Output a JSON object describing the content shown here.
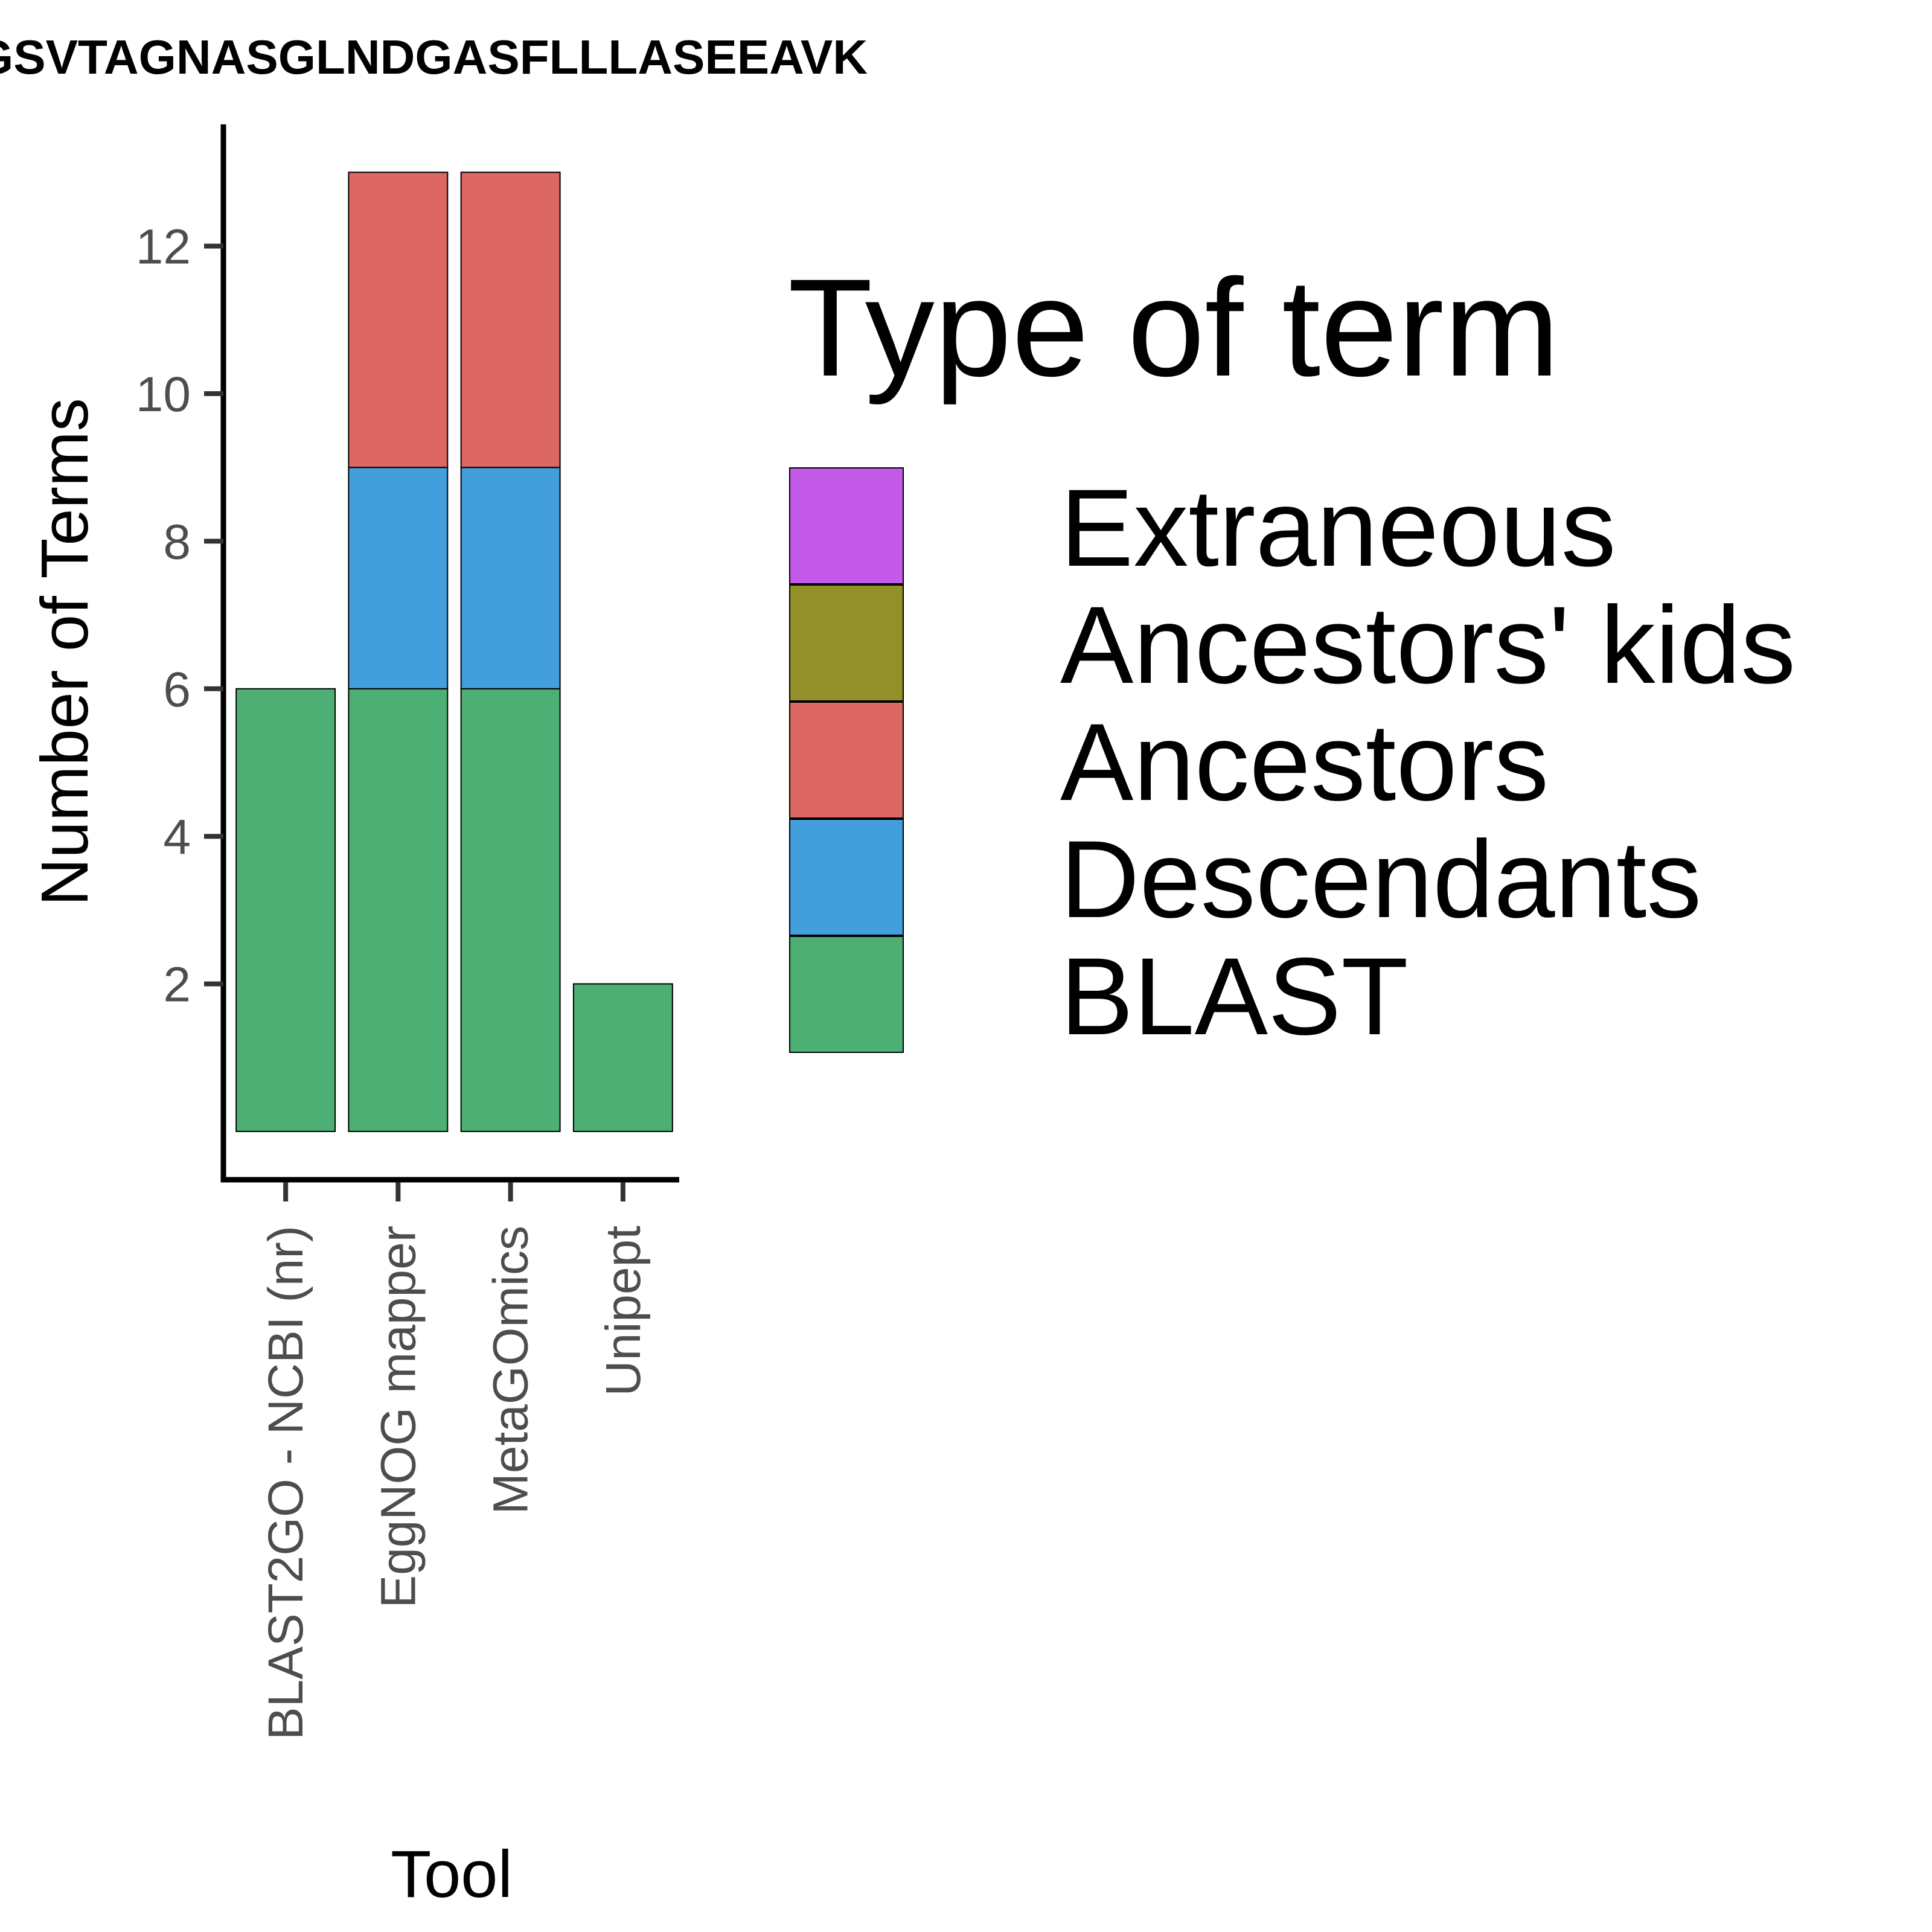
{
  "chart_data": {
    "type": "bar",
    "stacked": true,
    "title": "GSVTAGNASGLNDGASFLLLASEEAVK",
    "xlabel": "Tool",
    "ylabel": "Number of Terms",
    "categories": [
      "BLAST2GO - NCBI (nr)",
      "EggNOG mapper",
      "MetaGOmics",
      "Unipept"
    ],
    "series": [
      {
        "name": "BLAST",
        "color": "#4daf74",
        "values": [
          6,
          6,
          6,
          2
        ]
      },
      {
        "name": "Descendants",
        "color": "#429fdc",
        "values": [
          0,
          3,
          3,
          0
        ]
      },
      {
        "name": "Ancestors",
        "color": "#dd6762",
        "values": [
          0,
          4,
          4,
          0
        ]
      },
      {
        "name": "Ancestors' kids",
        "color": "#929129",
        "values": [
          0,
          0,
          0,
          0
        ]
      },
      {
        "name": "Extraneous",
        "color": "#c45be8",
        "values": [
          0,
          0,
          0,
          0
        ]
      }
    ],
    "yticks": [
      2,
      4,
      6,
      8,
      10,
      12
    ],
    "ylim": [
      0,
      13.6
    ],
    "grid": false,
    "legend": {
      "title": "Type of term",
      "position": "right",
      "order": [
        "Extraneous",
        "Ancestors' kids",
        "Ancestors",
        "Descendants",
        "BLAST"
      ]
    }
  }
}
